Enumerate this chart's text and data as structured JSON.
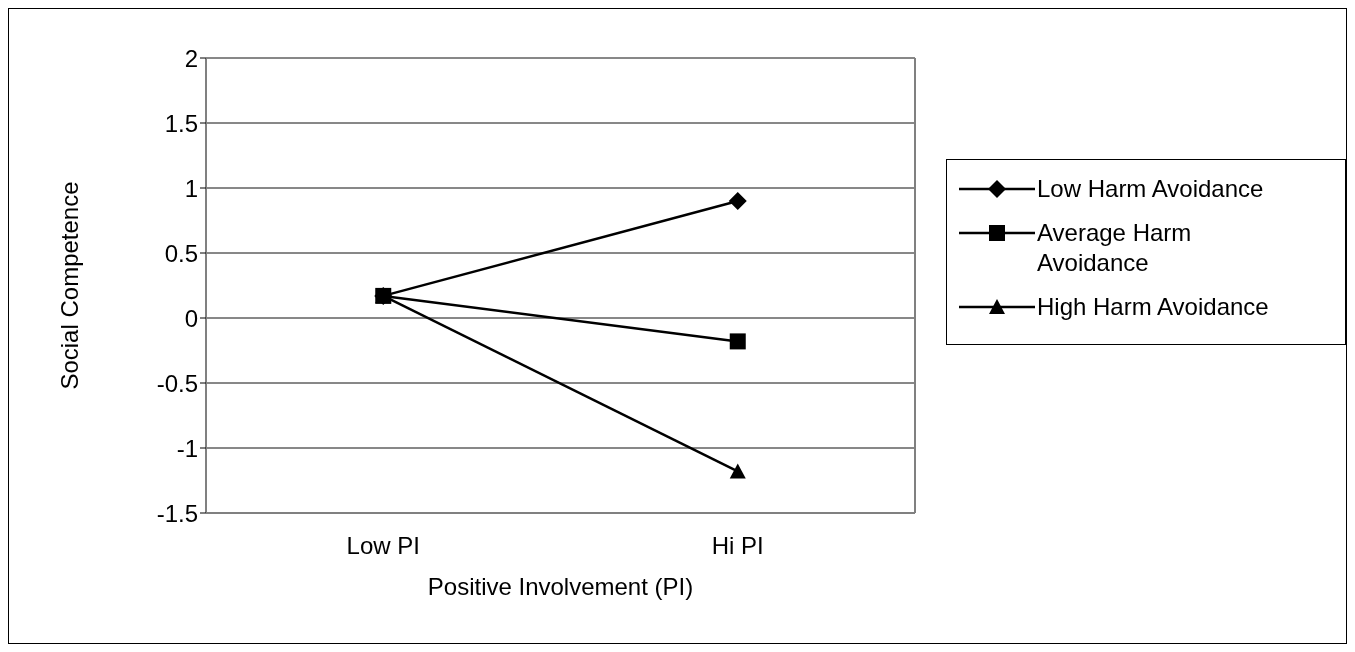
{
  "chart_data": {
    "type": "line",
    "xlabel": "Positive Involvement (PI)",
    "ylabel": "Social Competence",
    "categories": [
      "Low PI",
      "Hi PI"
    ],
    "series": [
      {
        "name": "Low Harm Avoidance",
        "color": "#000000",
        "marker": "diamond",
        "values": [
          0.17,
          0.9
        ]
      },
      {
        "name": "Average Harm Avoidance",
        "color": "#000000",
        "marker": "square",
        "values": [
          0.17,
          -0.18
        ]
      },
      {
        "name": "High Harm Avoidance",
        "color": "#000000",
        "marker": "triangle",
        "values": [
          0.17,
          -1.18
        ]
      }
    ],
    "ylim": [
      -1.5,
      2
    ],
    "yticks": [
      -1.5,
      -1,
      -0.5,
      0,
      0.5,
      1,
      1.5,
      2
    ],
    "grid": "y",
    "legend": "right",
    "line_style": "solid"
  }
}
